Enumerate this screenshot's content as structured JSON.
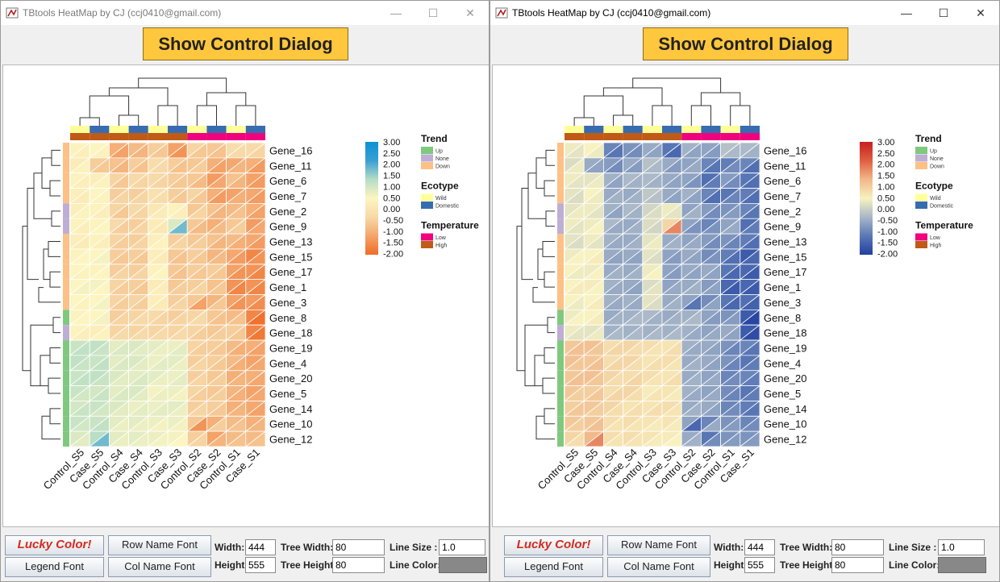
{
  "windows": [
    {
      "title": "TBtools HeatMap by CJ (ccj0410@gmail.com)",
      "show_button": "Show Control Dialog",
      "palette": "teal_orange",
      "controls": {
        "lucky": "Lucky Color!",
        "legend_font": "Legend Font",
        "row_name_font": "Row Name Font",
        "col_name_font": "Col Name Font",
        "width_label": "Width:",
        "width_value": "444",
        "height_label": "Height:",
        "height_value": "555",
        "tree_width_label": "Tree Width:",
        "tree_width_value": "80",
        "tree_height_label": "Tree Height:",
        "tree_height_value": "80",
        "line_size_label": "Line Size :",
        "line_size_value": "1.0",
        "line_color_label": "Line Color:"
      }
    },
    {
      "title": "TBtools HeatMap by CJ (ccj0410@gmail.com)",
      "show_button": "Show Control Dialog",
      "palette": "red_blue",
      "controls": {
        "lucky": "Lucky Color!",
        "legend_font": "Legend Font",
        "row_name_font": "Row Name Font",
        "col_name_font": "Col Name Font",
        "width_label": "Width:",
        "width_value": "444",
        "height_label": "Height:",
        "height_value": "555",
        "tree_width_label": "Tree Width:",
        "tree_width_value": "80",
        "tree_height_label": "Tree Height:",
        "tree_height_value": "80",
        "line_size_label": "Line Size :",
        "line_size_value": "1.0",
        "line_color_label": "Line Color:"
      }
    }
  ],
  "window_buttons": {
    "minimize": "—",
    "maximize": "☐",
    "close": "✕"
  },
  "chart_data": {
    "type": "heatmap",
    "columns": [
      "Control_S5",
      "Case_S5",
      "Control_S4",
      "Case_S4",
      "Control_S3",
      "Case_S3",
      "Control_S2",
      "Case_S2",
      "Control_S1",
      "Case_S1"
    ],
    "rows": [
      "Gene_16",
      "Gene_11",
      "Gene_6",
      "Gene_7",
      "Gene_2",
      "Gene_9",
      "Gene_13",
      "Gene_15",
      "Gene_17",
      "Gene_1",
      "Gene_3",
      "Gene_8",
      "Gene_18",
      "Gene_19",
      "Gene_4",
      "Gene_20",
      "Gene_5",
      "Gene_14",
      "Gene_10",
      "Gene_12"
    ],
    "values": [
      [
        0.3,
        0.4,
        -1.2,
        -0.9,
        -0.6,
        -1.4,
        -0.6,
        -0.7,
        -0.3,
        -0.4
      ],
      [
        0.4,
        -0.6,
        -0.9,
        -0.7,
        -0.3,
        -0.7,
        -0.5,
        -1.2,
        -0.9,
        -1.3
      ],
      [
        0.3,
        0.4,
        -0.6,
        -0.4,
        -0.4,
        -0.6,
        -0.8,
        -1.1,
        -0.9,
        -1.3
      ],
      [
        0.2,
        0.4,
        -0.4,
        -0.4,
        -0.2,
        -0.6,
        -0.6,
        -1.3,
        -1.0,
        -1.3
      ],
      [
        0.4,
        0.3,
        -0.6,
        -0.4,
        0.2,
        0.3,
        -0.4,
        -0.9,
        -0.7,
        -1.2
      ],
      [
        0.3,
        0.5,
        -0.5,
        -0.4,
        0.1,
        1.8,
        -0.8,
        -0.8,
        -0.5,
        -1.1
      ],
      [
        0.2,
        0.3,
        -0.5,
        -0.4,
        0.4,
        -0.4,
        -0.5,
        -0.9,
        -1.0,
        -1.3
      ],
      [
        0.5,
        0.6,
        -0.6,
        -0.6,
        0.2,
        -0.7,
        -0.6,
        -0.8,
        -1.3,
        -1.4
      ],
      [
        0.4,
        0.5,
        -0.4,
        -0.4,
        0.5,
        -0.7,
        -0.6,
        -0.6,
        -1.4,
        -1.6
      ],
      [
        0.6,
        0.5,
        -0.5,
        -0.6,
        0.3,
        -0.5,
        -0.4,
        -0.6,
        -1.6,
        -1.6
      ],
      [
        0.4,
        0.6,
        -0.5,
        -0.5,
        0.2,
        -0.4,
        -1.2,
        -0.6,
        -1.4,
        -1.5
      ],
      [
        0.5,
        0.6,
        -0.4,
        -0.3,
        -0.4,
        -0.4,
        -0.3,
        -0.7,
        -0.7,
        -1.9
      ],
      [
        0.3,
        0.4,
        -0.3,
        -0.3,
        -0.3,
        -0.3,
        -0.5,
        -0.5,
        -0.6,
        -1.8
      ],
      [
        1.2,
        1.1,
        0.9,
        0.8,
        0.7,
        0.8,
        -0.5,
        -0.6,
        -1.0,
        -1.2
      ],
      [
        1.1,
        1.2,
        0.9,
        0.8,
        0.8,
        0.7,
        -0.4,
        -0.6,
        -1.0,
        -1.1
      ],
      [
        1.2,
        1.1,
        0.8,
        0.9,
        0.7,
        0.8,
        -0.4,
        -0.5,
        -0.9,
        -1.1
      ],
      [
        1.0,
        1.1,
        0.9,
        0.8,
        0.7,
        0.6,
        -0.5,
        -0.5,
        -1.0,
        -1.1
      ],
      [
        1.1,
        1.0,
        0.8,
        0.8,
        0.8,
        0.7,
        -0.4,
        -0.6,
        -0.9,
        -1.2
      ],
      [
        1.0,
        1.2,
        0.7,
        0.7,
        0.6,
        0.6,
        -1.4,
        -0.5,
        -0.7,
        -0.9
      ],
      [
        0.8,
        1.8,
        0.7,
        0.7,
        0.6,
        0.5,
        -0.4,
        -0.9,
        -0.7,
        -0.7
      ]
    ],
    "upper_triangle_values": [
      [
        0.4,
        0.5,
        -1.0,
        -0.8,
        -0.5,
        -1.2,
        -0.4,
        -0.6,
        -0.2,
        -0.3
      ],
      [
        0.2,
        -0.5,
        -0.7,
        -0.5,
        -0.2,
        -0.5,
        -0.6,
        -1.0,
        -1.1,
        -1.0
      ],
      [
        0.4,
        0.3,
        -0.4,
        -0.3,
        -0.3,
        -0.5,
        -0.6,
        -1.3,
        -0.7,
        -1.2
      ],
      [
        0.3,
        0.5,
        -0.5,
        -0.5,
        -0.1,
        -0.5,
        -0.4,
        -1.0,
        -1.2,
        -1.1
      ],
      [
        0.3,
        0.4,
        -0.4,
        -0.3,
        0.1,
        0.4,
        -0.6,
        -0.7,
        -0.8,
        -1.0
      ],
      [
        0.4,
        0.4,
        -0.3,
        -0.5,
        0.2,
        0.9,
        -0.6,
        -1.0,
        -0.6,
        -1.3
      ],
      [
        0.3,
        0.4,
        -0.4,
        -0.5,
        0.3,
        -0.5,
        -0.6,
        -0.7,
        -0.8,
        -1.1
      ],
      [
        0.4,
        0.5,
        -0.5,
        -0.5,
        0.3,
        -0.6,
        -0.5,
        -0.9,
        -1.1,
        -1.6
      ],
      [
        0.5,
        0.4,
        -0.5,
        -0.5,
        0.4,
        -0.6,
        -0.5,
        -0.5,
        -1.2,
        -1.4
      ],
      [
        0.5,
        0.6,
        -0.4,
        -0.5,
        0.2,
        -0.6,
        -0.5,
        -0.7,
        -1.4,
        -1.4
      ],
      [
        0.5,
        0.5,
        -0.4,
        -0.4,
        0.3,
        -0.5,
        -0.6,
        -0.9,
        -1.2,
        -1.3
      ],
      [
        0.4,
        0.5,
        -0.5,
        -0.4,
        -0.3,
        -0.5,
        -0.4,
        -0.6,
        -0.8,
        -1.6
      ],
      [
        0.4,
        0.3,
        -0.4,
        -0.4,
        -0.4,
        -0.4,
        -0.4,
        -0.6,
        -0.5,
        -1.6
      ],
      [
        1.1,
        1.2,
        0.8,
        0.9,
        0.8,
        0.7,
        -0.4,
        -0.5,
        -0.8,
        -1.0
      ],
      [
        1.2,
        1.1,
        0.8,
        0.9,
        0.7,
        0.8,
        -0.5,
        -0.5,
        -0.8,
        -1.2
      ],
      [
        1.1,
        1.2,
        0.9,
        0.8,
        0.8,
        0.7,
        -0.5,
        -0.6,
        -1.0,
        -1.0
      ],
      [
        1.1,
        1.0,
        0.8,
        0.9,
        0.6,
        0.7,
        -0.4,
        -0.6,
        -0.9,
        -1.2
      ],
      [
        1.0,
        1.1,
        0.9,
        0.7,
        0.7,
        0.8,
        -0.5,
        -0.5,
        -1.0,
        -1.1
      ],
      [
        1.1,
        1.1,
        0.8,
        0.8,
        0.7,
        0.7,
        -0.6,
        -1.0,
        -0.8,
        -1.0
      ],
      [
        0.9,
        1.3,
        0.8,
        0.8,
        0.7,
        0.6,
        -0.5,
        -1.2,
        -0.8,
        -0.8
      ]
    ],
    "color_scale": {
      "ticks": [
        "3.00",
        "2.50",
        "2.00",
        "1.50",
        "1.00",
        "0.50",
        "0.00",
        "-0.50",
        "-1.00",
        "-1.50",
        "-2.00"
      ],
      "min": -2,
      "max": 3
    },
    "row_annotation_trend": [
      "Down",
      "Down",
      "Down",
      "Down",
      "None",
      "None",
      "Down",
      "Down",
      "Down",
      "Down",
      "Down",
      "Up",
      "None",
      "Up",
      "Up",
      "Up",
      "Up",
      "Up",
      "Up",
      "Up"
    ],
    "col_annotation_ecotype": [
      "Wild",
      "Domestic",
      "Wild",
      "Domestic",
      "Wild",
      "Domestic",
      "Wild",
      "Domestic",
      "Wild",
      "Domestic"
    ],
    "col_annotation_temperature": [
      "High",
      "High",
      "High",
      "High",
      "High",
      "High",
      "Low",
      "Low",
      "Low",
      "Low"
    ],
    "legends": [
      {
        "title": "Trend",
        "items": [
          {
            "label": "Up",
            "color": "#7fc97f"
          },
          {
            "label": "None",
            "color": "#beaed4"
          },
          {
            "label": "Down",
            "color": "#fdc086"
          }
        ]
      },
      {
        "title": "Ecotype",
        "items": [
          {
            "label": "Wild",
            "color": "#ffff99"
          },
          {
            "label": "Domestic",
            "color": "#386cb0"
          }
        ]
      },
      {
        "title": "Temperature",
        "items": [
          {
            "label": "Low",
            "color": "#f0027f"
          },
          {
            "label": "High",
            "color": "#bf5b17"
          }
        ]
      }
    ],
    "palettes": {
      "teal_orange": [
        "#f06b25",
        "#f4a46b",
        "#f7d9a8",
        "#fdf5c0",
        "#b5ddc5",
        "#3a9fd4",
        "#0b92d3"
      ],
      "red_blue": [
        "#2140a0",
        "#5a78b5",
        "#a8b7c8",
        "#f7f2c0",
        "#f1b88a",
        "#df6040",
        "#c81e1e"
      ]
    }
  }
}
